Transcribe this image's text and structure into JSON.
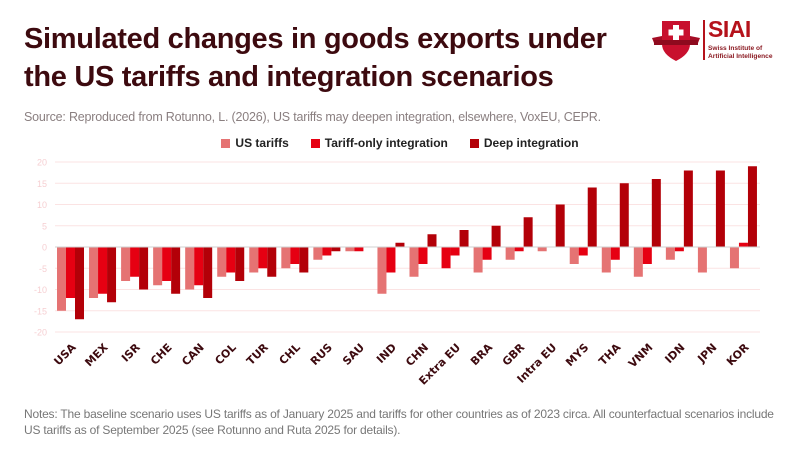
{
  "header": {
    "title_line1": "Simulated changes in goods exports under",
    "title_line2": "the US tariffs and integration scenarios",
    "source": "Source: Reproduced from Rotunno, L. (2026), US tariffs may deepen integration, elsewhere, VoxEU, CEPR."
  },
  "logo": {
    "name": "SIAI",
    "subtitle_line1": "Swiss Institute of",
    "subtitle_line2": "Artificial Intelligence",
    "icon": "shield-cross-icon",
    "color": "#b5121b"
  },
  "notes": "Notes: The baseline scenario uses US tariffs as of January 2025 and tariffs for other countries as of 2023 circa. All counterfactual scenarios include US tariffs as of September 2025 (see Rotunno and Ruta 2025 for details).",
  "chart_data": {
    "type": "bar",
    "title": "Simulated changes in goods exports under the US tariffs and integration scenarios",
    "xlabel": "",
    "ylabel": "",
    "ylim": [
      -20,
      20
    ],
    "yticks": [
      20,
      15,
      10,
      5,
      0,
      -5,
      -10,
      -15,
      -20
    ],
    "grid": true,
    "legend_position": "top-center",
    "categories": [
      "USA",
      "MEX",
      "ISR",
      "CHE",
      "CAN",
      "COL",
      "TUR",
      "CHL",
      "RUS",
      "SAU",
      "IND",
      "CHN",
      "Extra EU",
      "BRA",
      "GBR",
      "Intra EU",
      "MYS",
      "THA",
      "VNM",
      "IDN",
      "JPN",
      "KOR"
    ],
    "series": [
      {
        "name": "US tariffs",
        "color": "#e57373",
        "values": [
          -15,
          -12,
          -8,
          -9,
          -10,
          -7,
          -6,
          -5,
          -3,
          -1,
          -11,
          -7,
          -5,
          -6,
          -3,
          -1,
          -4,
          -6,
          -7,
          -3,
          -6,
          -5
        ],
        "color_overrides": {
          "Extra EU": "#e60012"
        }
      },
      {
        "name": "Tariff-only integration",
        "color": "#e60012",
        "values": [
          -12,
          -11,
          -7,
          -8,
          -9,
          -6,
          -5,
          -4,
          -2,
          -1,
          -6,
          -4,
          -2,
          -3,
          -1,
          0,
          -2,
          -3,
          -4,
          -1,
          0,
          1
        ]
      },
      {
        "name": "Deep integration",
        "color": "#b30008",
        "values": [
          -17,
          -13,
          -10,
          -11,
          -12,
          -8,
          -7,
          -6,
          -1,
          0,
          1,
          3,
          4,
          5,
          7,
          10,
          14,
          15,
          16,
          18,
          18,
          19
        ]
      }
    ]
  }
}
